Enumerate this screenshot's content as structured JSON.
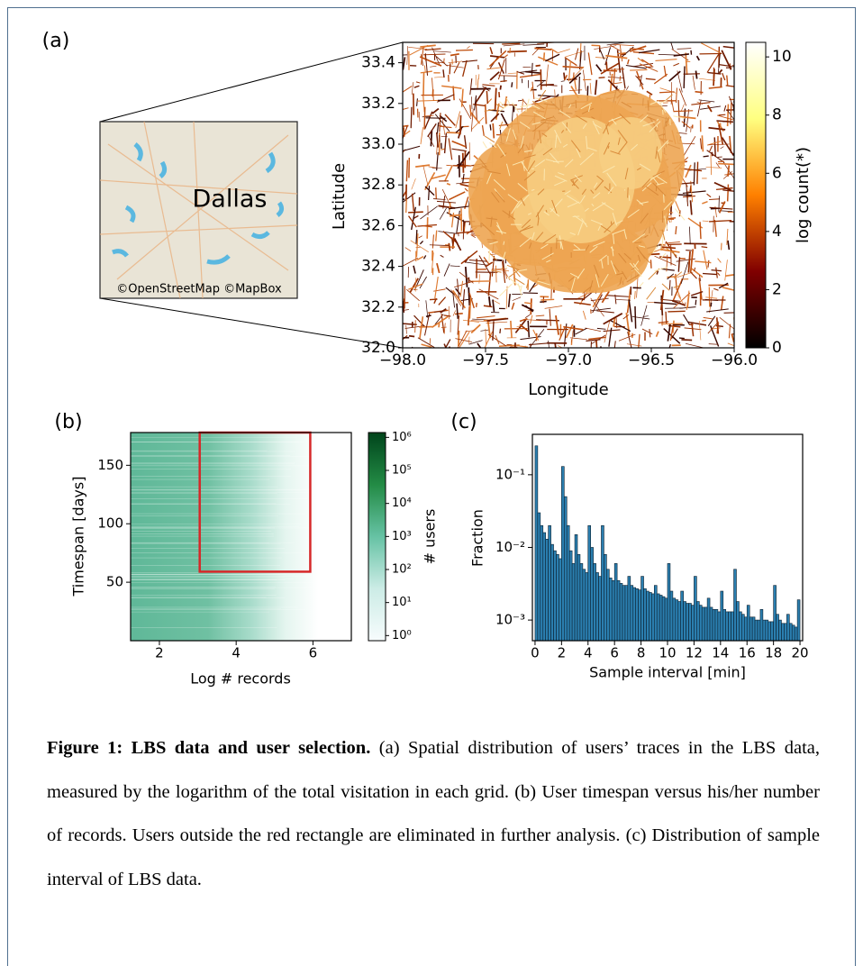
{
  "chart_data": [
    {
      "type": "heatmap",
      "panel": "(a)",
      "xlabel": "Longitude",
      "ylabel": "Latitude",
      "xlim": [
        -98,
        -96
      ],
      "ylim": [
        32,
        33.5
      ],
      "xticks": [
        {
          "value": -98,
          "label": "−98.0"
        },
        {
          "value": -97.5,
          "label": "−97.5"
        },
        {
          "value": -97,
          "label": "−97.0"
        },
        {
          "value": -96.5,
          "label": "−96.5"
        },
        {
          "value": -96,
          "label": "−96.0"
        }
      ],
      "yticks": [
        {
          "value": 32,
          "label": "32.0"
        },
        32.2,
        32.4,
        32.6,
        32.8,
        {
          "value": 33,
          "label": "33.0"
        },
        33.2,
        33.4
      ],
      "colorbar": {
        "label": "log count(*)",
        "lim": [
          0,
          10.5
        ],
        "ticks": [
          0,
          2,
          4,
          6,
          8,
          10
        ],
        "colormap": "afmhot"
      },
      "inset": {
        "label": "Dallas",
        "credit": "©OpenStreetMap ©MapBox"
      }
    },
    {
      "type": "hist2d",
      "panel": "(b)",
      "xlabel": "Log # records",
      "ylabel": "Timespan [days]",
      "xlim": [
        1.25,
        7
      ],
      "ylim": [
        0,
        178
      ],
      "xticks": [
        2,
        4,
        6
      ],
      "yticks": [
        50,
        100,
        150
      ],
      "selection": {
        "x": [
          3.05,
          5.93
        ],
        "y": [
          59,
          178
        ],
        "color": "#d62728"
      },
      "colorbar": {
        "label": "# users",
        "lim": [
          0.7,
          1400000
        ],
        "scale": "log",
        "colormap": "BuGn",
        "ticks": [
          {
            "value": 1,
            "label": "10⁰"
          },
          {
            "value": 10,
            "label": "10¹"
          },
          {
            "value": 100,
            "label": "10²"
          },
          {
            "value": 1000,
            "label": "10³"
          },
          {
            "value": 10000,
            "label": "10⁴"
          },
          {
            "value": 100000,
            "label": "10⁵"
          },
          {
            "value": 1000000,
            "label": "10⁶"
          }
        ]
      }
    },
    {
      "type": "histogram",
      "panel": "(c)",
      "xlabel": "Sample interval [min]",
      "ylabel": "Fraction",
      "xlim": [
        -0.2,
        20.2
      ],
      "ylim": [
        0.00052,
        0.36
      ],
      "yscale": "log",
      "xticks": [
        0,
        2,
        4,
        6,
        8,
        10,
        12,
        14,
        16,
        18,
        20
      ],
      "yticks": [
        {
          "value": 0.001,
          "label": "10⁻³"
        },
        {
          "value": 0.01,
          "label": "10⁻²"
        },
        {
          "value": 0.1,
          "label": "10⁻¹"
        }
      ],
      "color": "#2b7fb0",
      "edgecolor": "#0b1f2e",
      "bins": [
        0,
        0.2,
        0.4,
        0.6,
        0.8,
        1,
        1.2,
        1.4,
        1.6,
        1.8,
        2,
        2.2,
        2.4,
        2.6,
        2.8,
        3,
        3.2,
        3.4,
        3.6,
        3.8,
        4,
        4.2,
        4.4,
        4.6,
        4.8,
        5,
        5.2,
        5.4,
        5.6,
        5.8,
        6,
        6.2,
        6.4,
        6.6,
        6.8,
        7,
        7.2,
        7.4,
        7.6,
        7.8,
        8,
        8.2,
        8.4,
        8.6,
        8.8,
        9,
        9.2,
        9.4,
        9.6,
        9.8,
        10,
        10.2,
        10.4,
        10.6,
        10.8,
        11,
        11.2,
        11.4,
        11.6,
        11.8,
        12,
        12.2,
        12.4,
        12.6,
        12.8,
        13,
        13.2,
        13.4,
        13.6,
        13.8,
        14,
        14.2,
        14.4,
        14.6,
        14.8,
        15,
        15.2,
        15.4,
        15.6,
        15.8,
        16,
        16.2,
        16.4,
        16.6,
        16.8,
        17,
        17.2,
        17.4,
        17.6,
        17.8,
        18,
        18.2,
        18.4,
        18.6,
        18.8,
        19,
        19.2,
        19.4,
        19.6,
        19.8,
        20
      ],
      "values": [
        0.25,
        0.03,
        0.02,
        0.016,
        0.013,
        0.02,
        0.011,
        0.009,
        0.008,
        0.007,
        0.13,
        0.05,
        0.02,
        0.009,
        0.006,
        0.015,
        0.008,
        0.006,
        0.005,
        0.0045,
        0.02,
        0.01,
        0.006,
        0.0045,
        0.004,
        0.02,
        0.008,
        0.005,
        0.0038,
        0.0035,
        0.006,
        0.0035,
        0.0032,
        0.003,
        0.003,
        0.004,
        0.003,
        0.0028,
        0.0027,
        0.0026,
        0.004,
        0.0027,
        0.0025,
        0.0024,
        0.0023,
        0.003,
        0.0023,
        0.0022,
        0.0021,
        0.002,
        0.006,
        0.0025,
        0.002,
        0.0019,
        0.0018,
        0.0025,
        0.0018,
        0.0017,
        0.0017,
        0.0016,
        0.004,
        0.0018,
        0.0016,
        0.0015,
        0.0015,
        0.002,
        0.0015,
        0.0014,
        0.0014,
        0.0013,
        0.0025,
        0.0014,
        0.0013,
        0.0013,
        0.0013,
        0.005,
        0.0018,
        0.0013,
        0.0012,
        0.0011,
        0.0016,
        0.0011,
        0.0011,
        0.001,
        0.001,
        0.0014,
        0.001,
        0.001,
        0.00095,
        0.00095,
        0.003,
        0.0012,
        0.001,
        0.0009,
        0.0009,
        0.0012,
        0.0009,
        0.00085,
        0.0008,
        0.0019
      ]
    }
  ],
  "caption": {
    "title": "Figure 1: LBS data and user selection.",
    "text": "(a) Spatial distribution of users’ traces in the LBS data, measured by the logarithm of the total visitation in each grid. (b) User timespan versus his/her number of records. Users outside the red rectangle are eliminated in further analysis. (c) Distribution of sample interval of LBS data."
  }
}
